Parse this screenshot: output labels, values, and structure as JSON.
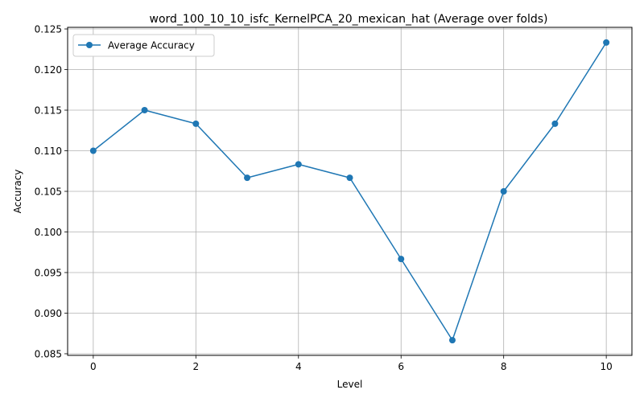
{
  "chart_data": {
    "type": "line",
    "title": "word_100_10_10_isfc_KernelPCA_20_mexican_hat (Average over folds)",
    "xlabel": "Level",
    "ylabel": "Accuracy",
    "x": [
      0,
      1,
      2,
      3,
      4,
      5,
      6,
      7,
      8,
      9,
      10
    ],
    "series": [
      {
        "name": "Average Accuracy",
        "color": "#1f77b4",
        "marker": "circle",
        "values": [
          0.11,
          0.115,
          0.11333,
          0.10667,
          0.10833,
          0.10667,
          0.09667,
          0.08667,
          0.105,
          0.11333,
          0.12333
        ]
      }
    ],
    "xlim": [
      -0.5,
      10.5
    ],
    "ylim": [
      0.0848,
      0.1252
    ],
    "xticks": [
      0,
      2,
      4,
      6,
      8,
      10
    ],
    "xtick_labels": [
      "0",
      "2",
      "4",
      "6",
      "8",
      "10"
    ],
    "yticks": [
      0.085,
      0.09,
      0.095,
      0.1,
      0.105,
      0.11,
      0.115,
      0.12,
      0.125
    ],
    "ytick_labels": [
      "0.085",
      "0.090",
      "0.095",
      "0.100",
      "0.105",
      "0.110",
      "0.115",
      "0.120",
      "0.125"
    ],
    "grid": true,
    "legend_position": "top-left"
  }
}
